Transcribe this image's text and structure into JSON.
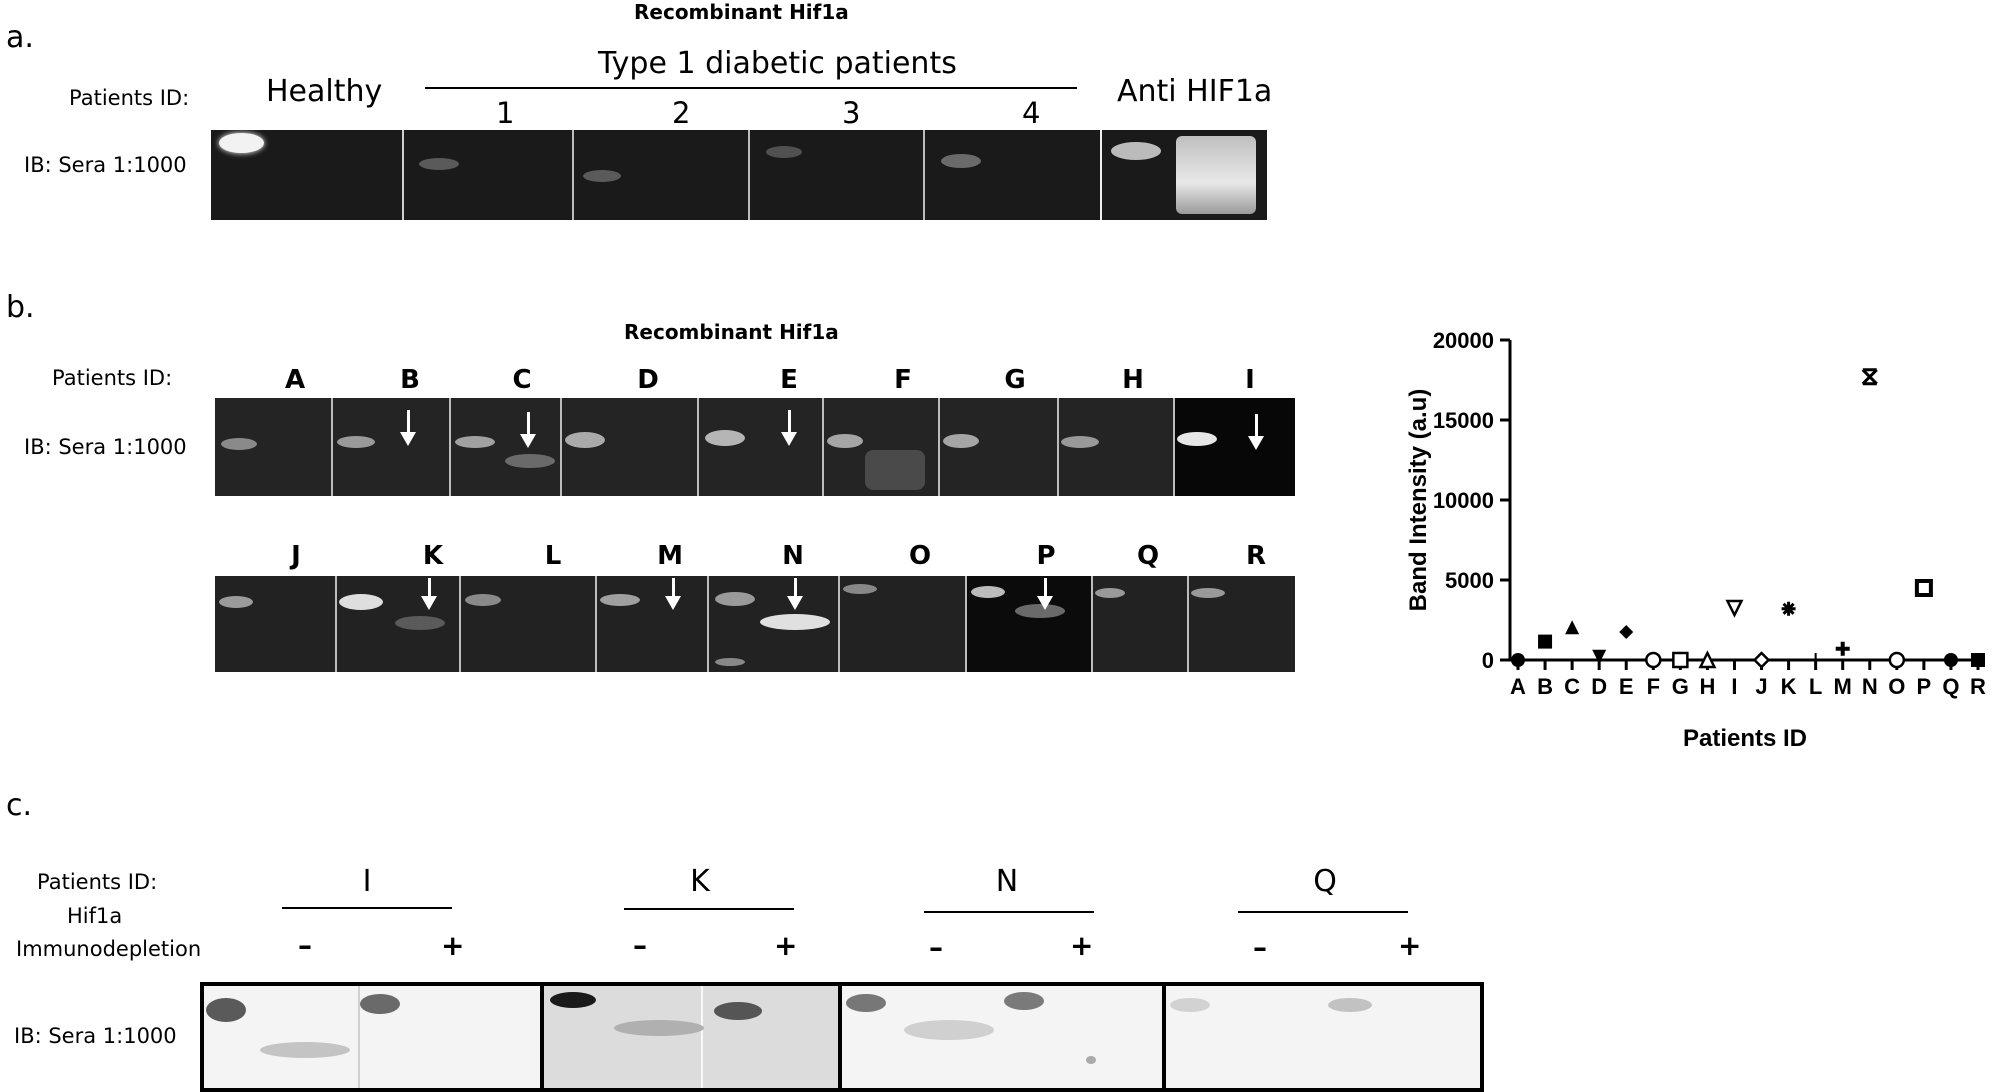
{
  "panel_a": {
    "letter": "a.",
    "header": "Recombinant Hif1a",
    "patients_label": "Patients ID:",
    "healthy_label": "Healthy",
    "group_label": "Type 1 diabetic patients",
    "lane_numbers": [
      "1",
      "2",
      "3",
      "4"
    ],
    "anti_label": "Anti HIF1a",
    "ib_label": "IB: Sera 1:1000"
  },
  "panel_b": {
    "letter": "b.",
    "header": "Recombinant Hif1a",
    "patients_label": "Patients ID:",
    "ib_label": "IB: Sera 1:1000",
    "row1_letters": [
      "A",
      "B",
      "C",
      "D",
      "E",
      "F",
      "G",
      "H",
      "I"
    ],
    "row2_letters": [
      "J",
      "K",
      "L",
      "M",
      "N",
      "O",
      "P",
      "Q",
      "R"
    ]
  },
  "panel_c": {
    "letter": "c.",
    "patients_label": "Patients ID:",
    "hif_label": "Hif1a",
    "immuno_label": "Immunodepletion",
    "patients": [
      "I",
      "K",
      "N",
      "Q"
    ],
    "minus": "–",
    "plus": "+",
    "ib_label": "IB: Sera 1:1000"
  },
  "chart_data": {
    "type": "scatter",
    "title": "",
    "xlabel": "Patients ID",
    "ylabel": "Band Intensity (a.u)",
    "ylim": [
      0,
      20000
    ],
    "yticks": [
      "0",
      "5000",
      "10000",
      "15000",
      "20000"
    ],
    "categories": [
      "A",
      "B",
      "C",
      "D",
      "E",
      "F",
      "G",
      "H",
      "I",
      "J",
      "K",
      "L",
      "M",
      "N",
      "O",
      "P",
      "Q",
      "R"
    ],
    "values": [
      0,
      1150,
      2050,
      200,
      1750,
      0,
      0,
      0,
      3250,
      0,
      3200,
      0,
      700,
      17700,
      0,
      4500,
      0,
      0
    ],
    "markers": [
      "filled-circle",
      "filled-square",
      "filled-triangle",
      "filled-down-triangle",
      "filled-diamond",
      "open-circle",
      "open-square",
      "open-triangle",
      "open-down-triangle",
      "open-diamond",
      "star",
      "plus-thin",
      "plus",
      "x-box",
      "open-circle-dot",
      "square-dot",
      "filled-circle",
      "filled-square"
    ]
  }
}
